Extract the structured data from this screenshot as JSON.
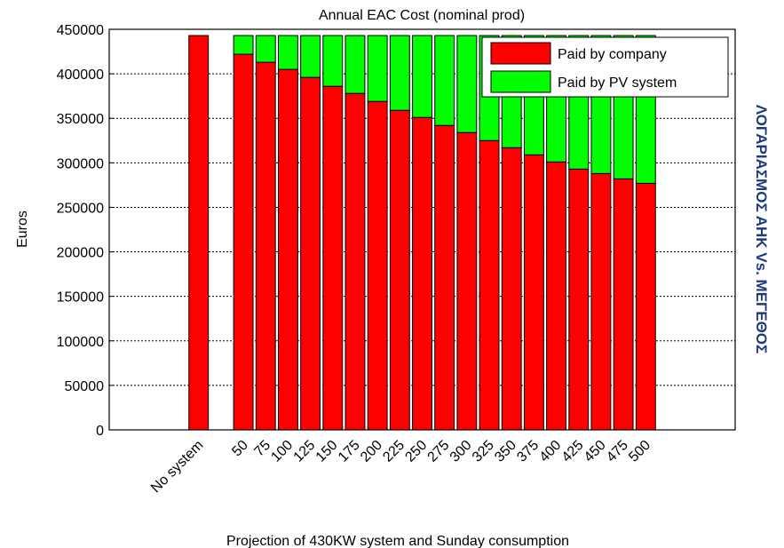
{
  "chart_data": {
    "type": "stacked_bar",
    "title": "Annual EAC Cost (nominal prod)",
    "ylabel": "Euros",
    "xlabel": "Projection of 430KW system and Sunday consumption",
    "side_note": "ΛΟΓΑΡΙΑΣΜΟΣ ΑΗΚ Vs. ΜΕΓΕΘΟΣ",
    "categories": [
      null,
      null,
      null,
      "No system",
      null,
      "50",
      "75",
      "100",
      "125",
      "150",
      "175",
      "200",
      "225",
      "250",
      "275",
      "300",
      "325",
      "350",
      "375",
      "400",
      "425",
      "450",
      "475",
      "500",
      null,
      null,
      null
    ],
    "series": [
      {
        "name": "Paid by company",
        "color": "#ff0000",
        "values": [
          null,
          null,
          null,
          443000,
          null,
          422000,
          413000,
          405000,
          396000,
          386000,
          378000,
          369000,
          359000,
          351000,
          342000,
          334000,
          325000,
          317000,
          309000,
          301000,
          293000,
          288000,
          282000,
          277000,
          null,
          null,
          null
        ]
      },
      {
        "name": "Paid by PV system",
        "color": "#00ff00",
        "values": [
          null,
          null,
          null,
          null,
          null,
          21000,
          30000,
          38000,
          47000,
          57000,
          65000,
          74000,
          84000,
          92000,
          101000,
          109000,
          118000,
          126000,
          134000,
          142000,
          150000,
          155000,
          161000,
          166000,
          null,
          null,
          null
        ]
      }
    ],
    "ylim": [
      0,
      450000
    ],
    "yticks": [
      0,
      50000,
      100000,
      150000,
      200000,
      250000,
      300000,
      350000,
      400000,
      450000
    ],
    "grid": true,
    "legend": "upper right"
  }
}
